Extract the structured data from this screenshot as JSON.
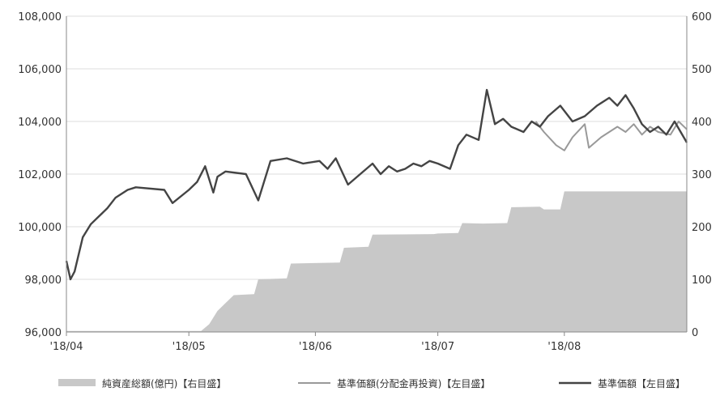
{
  "chart_data": {
    "type": "line",
    "x_ticks": [
      "'18/04",
      "'18/05",
      "'18/06",
      "'18/07",
      "'18/08"
    ],
    "y_left_ticks": [
      "96,000",
      "98,000",
      "100,000",
      "102,000",
      "104,000",
      "106,000",
      "108,000"
    ],
    "y_right_ticks": [
      "0",
      "100",
      "200",
      "300",
      "400",
      "500",
      "600"
    ],
    "y_left_range": [
      96000,
      108000
    ],
    "y_right_range": [
      0,
      600
    ],
    "x_domain": [
      "2018-04-01",
      "2018-08-31"
    ],
    "grid": true,
    "legend_position": "bottom",
    "colors": {
      "area": "#c8c8c8",
      "nav_reinvest": "#999999",
      "nav": "#444444",
      "grid": "#dddddd",
      "axis": "#888888"
    },
    "series": [
      {
        "name": "純資産総額(億円)【右目盛】",
        "axis": "right",
        "kind": "area",
        "points": [
          [
            "2018-04-01",
            2
          ],
          [
            "2018-05-04",
            2
          ],
          [
            "2018-05-06",
            15
          ],
          [
            "2018-05-08",
            40
          ],
          [
            "2018-05-10",
            55
          ],
          [
            "2018-05-12",
            70
          ],
          [
            "2018-05-17",
            72
          ],
          [
            "2018-05-18",
            100
          ],
          [
            "2018-05-25",
            102
          ],
          [
            "2018-05-26",
            130
          ],
          [
            "2018-06-07",
            132
          ],
          [
            "2018-06-08",
            160
          ],
          [
            "2018-06-14",
            162
          ],
          [
            "2018-06-15",
            185
          ],
          [
            "2018-06-30",
            186
          ],
          [
            "2018-07-01",
            187
          ],
          [
            "2018-07-06",
            188
          ],
          [
            "2018-07-07",
            207
          ],
          [
            "2018-07-12",
            206
          ],
          [
            "2018-07-18",
            207
          ],
          [
            "2018-07-19",
            237
          ],
          [
            "2018-07-26",
            238
          ],
          [
            "2018-07-27",
            233
          ],
          [
            "2018-07-31",
            233
          ],
          [
            "2018-08-01",
            267
          ],
          [
            "2018-08-31",
            267
          ]
        ]
      },
      {
        "name": "基準価額(分配金再投資)【左目盛】",
        "axis": "left",
        "kind": "line",
        "points": [
          [
            "2018-07-25",
            104000
          ],
          [
            "2018-07-27",
            103600
          ],
          [
            "2018-07-30",
            103100
          ],
          [
            "2018-08-01",
            102900
          ],
          [
            "2018-08-03",
            103400
          ],
          [
            "2018-08-06",
            103900
          ],
          [
            "2018-08-07",
            103000
          ],
          [
            "2018-08-10",
            103400
          ],
          [
            "2018-08-14",
            103800
          ],
          [
            "2018-08-16",
            103600
          ],
          [
            "2018-08-18",
            103900
          ],
          [
            "2018-08-20",
            103500
          ],
          [
            "2018-08-22",
            103800
          ],
          [
            "2018-08-24",
            103600
          ],
          [
            "2018-08-27",
            103500
          ],
          [
            "2018-08-29",
            104000
          ],
          [
            "2018-08-31",
            103700
          ]
        ]
      },
      {
        "name": "基準価額【左目盛】",
        "axis": "left",
        "kind": "line",
        "points": [
          [
            "2018-04-01",
            98700
          ],
          [
            "2018-04-02",
            98000
          ],
          [
            "2018-04-03",
            98300
          ],
          [
            "2018-04-05",
            99600
          ],
          [
            "2018-04-07",
            100100
          ],
          [
            "2018-04-09",
            100400
          ],
          [
            "2018-04-11",
            100700
          ],
          [
            "2018-04-13",
            101100
          ],
          [
            "2018-04-16",
            101400
          ],
          [
            "2018-04-18",
            101500
          ],
          [
            "2018-04-25",
            101400
          ],
          [
            "2018-04-27",
            100900
          ],
          [
            "2018-05-01",
            101400
          ],
          [
            "2018-05-03",
            101700
          ],
          [
            "2018-05-05",
            102300
          ],
          [
            "2018-05-07",
            101300
          ],
          [
            "2018-05-08",
            101900
          ],
          [
            "2018-05-10",
            102100
          ],
          [
            "2018-05-15",
            102000
          ],
          [
            "2018-05-18",
            101000
          ],
          [
            "2018-05-21",
            102500
          ],
          [
            "2018-05-25",
            102600
          ],
          [
            "2018-05-29",
            102400
          ],
          [
            "2018-06-02",
            102500
          ],
          [
            "2018-06-04",
            102200
          ],
          [
            "2018-06-06",
            102600
          ],
          [
            "2018-06-09",
            101600
          ],
          [
            "2018-06-12",
            102000
          ],
          [
            "2018-06-15",
            102400
          ],
          [
            "2018-06-17",
            102000
          ],
          [
            "2018-06-19",
            102300
          ],
          [
            "2018-06-21",
            102100
          ],
          [
            "2018-06-23",
            102200
          ],
          [
            "2018-06-25",
            102400
          ],
          [
            "2018-06-27",
            102300
          ],
          [
            "2018-06-29",
            102500
          ],
          [
            "2018-07-01",
            102400
          ],
          [
            "2018-07-04",
            102200
          ],
          [
            "2018-07-06",
            103100
          ],
          [
            "2018-07-08",
            103500
          ],
          [
            "2018-07-11",
            103300
          ],
          [
            "2018-07-13",
            105200
          ],
          [
            "2018-07-15",
            103900
          ],
          [
            "2018-07-17",
            104100
          ],
          [
            "2018-07-19",
            103800
          ],
          [
            "2018-07-22",
            103600
          ],
          [
            "2018-07-24",
            104000
          ],
          [
            "2018-07-26",
            103800
          ],
          [
            "2018-07-28",
            104200
          ],
          [
            "2018-07-31",
            104600
          ],
          [
            "2018-08-03",
            104000
          ],
          [
            "2018-08-06",
            104200
          ],
          [
            "2018-08-09",
            104600
          ],
          [
            "2018-08-12",
            104900
          ],
          [
            "2018-08-14",
            104600
          ],
          [
            "2018-08-16",
            105000
          ],
          [
            "2018-08-18",
            104500
          ],
          [
            "2018-08-20",
            103900
          ],
          [
            "2018-08-22",
            103600
          ],
          [
            "2018-08-24",
            103800
          ],
          [
            "2018-08-26",
            103500
          ],
          [
            "2018-08-28",
            104000
          ],
          [
            "2018-08-31",
            103200
          ]
        ]
      }
    ]
  }
}
